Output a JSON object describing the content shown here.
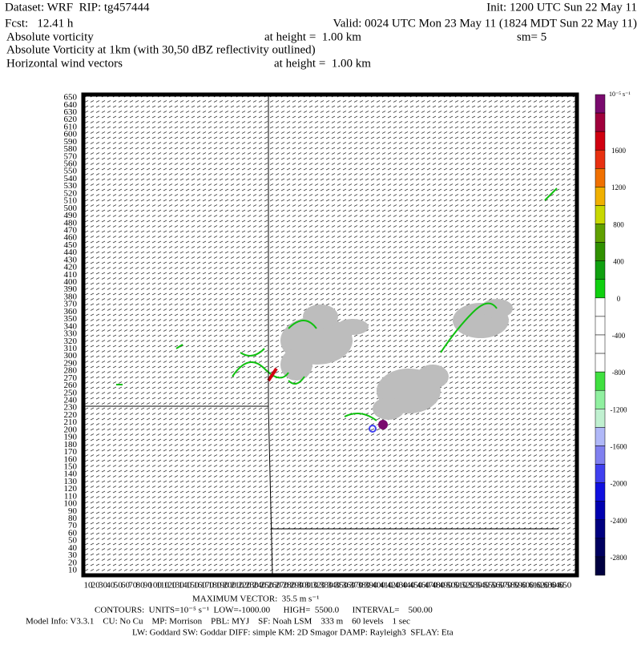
{
  "header": {
    "dataset": "Dataset: WRF  RIP: tg457444",
    "init": "Init: 1200 UTC Sun 22 May 11",
    "fcst": "Fcst:   12.41 h",
    "valid": "Valid: 0024 UTC Mon 23 May 11 (1824 MDT Sun 22 May 11)",
    "field1": "Absolute vorticity",
    "height1": "at height =  1.00 km",
    "smooth": "sm= 5",
    "field2": "Absolute Vorticity at 1km (with 30,50 dBZ reflectivity outlined)",
    "field3": "Horizontal wind vectors",
    "height3": "at height =  1.00 km"
  },
  "plot": {
    "yticks": [
      "10",
      "20",
      "30",
      "40",
      "50",
      "60",
      "70",
      "80",
      "90",
      "100",
      "110",
      "120",
      "130",
      "140",
      "150",
      "160",
      "170",
      "180",
      "190",
      "200",
      "210",
      "220",
      "230",
      "240",
      "250",
      "260",
      "270",
      "280",
      "290",
      "300",
      "310",
      "320",
      "330",
      "340",
      "350",
      "360",
      "370",
      "380",
      "390",
      "400",
      "410",
      "420",
      "430",
      "440",
      "450",
      "460",
      "470",
      "480",
      "490",
      "500",
      "510",
      "520",
      "530",
      "540",
      "550",
      "560",
      "570",
      "580",
      "590",
      "600",
      "610",
      "620",
      "630",
      "640",
      "650"
    ],
    "xticks": [
      "10",
      "20",
      "30",
      "40",
      "50",
      "60",
      "70",
      "80",
      "90",
      "100",
      "110",
      "120",
      "130",
      "140",
      "150",
      "160",
      "170",
      "180",
      "190",
      "200",
      "210",
      "220",
      "230",
      "240",
      "250",
      "260",
      "270",
      "280",
      "290",
      "300",
      "310",
      "320",
      "330",
      "340",
      "350",
      "360",
      "370",
      "380",
      "390",
      "400",
      "410",
      "420",
      "430",
      "440",
      "450",
      "460",
      "470",
      "480",
      "490",
      "500",
      "510",
      "520",
      "530",
      "540",
      "550",
      "560",
      "570",
      "580",
      "590",
      "600",
      "610",
      "620",
      "630",
      "640",
      "650"
    ]
  },
  "colorbar": {
    "units": "10⁻⁵ s⁻¹",
    "labels": [
      "1600",
      "1200",
      "800",
      "400",
      "0",
      "-400",
      "-800",
      "-1200",
      "-1600",
      "-2000",
      "-2400",
      "-2800"
    ],
    "colors": [
      "#7a0a6e",
      "#a0003c",
      "#d00010",
      "#e83010",
      "#f07000",
      "#f0b000",
      "#c8d800",
      "#60a000",
      "#309000",
      "#10a010",
      "#10d010",
      "#ffffff",
      "#ffffff",
      "#ffffff",
      "#ffffff",
      "#40e040",
      "#90f0a0",
      "#c0f0d0",
      "#b0b8f8",
      "#8080f0",
      "#4040f0",
      "#1010e0",
      "#0000b0",
      "#000080",
      "#000060",
      "#000040"
    ]
  },
  "footer": {
    "maxvec": "MAXIMUM VECTOR:  35.5 m s⁻¹",
    "contours": "CONTOURS:  UNITS=10⁻⁵ s⁻¹  LOW=-1000.00      HIGH=  5500.0      INTERVAL=    500.00",
    "model": "Model Info: V3.3.1    CU: No Cu    MP: Morrison    PBL: MYJ    SF: Noah LSM    333 m    60 levels    1 sec",
    "physics": "LW: Goddard SW: Goddar DIFF: simple KM: 2D Smagor DAMP: Rayleigh3  SFLAY: Eta"
  }
}
